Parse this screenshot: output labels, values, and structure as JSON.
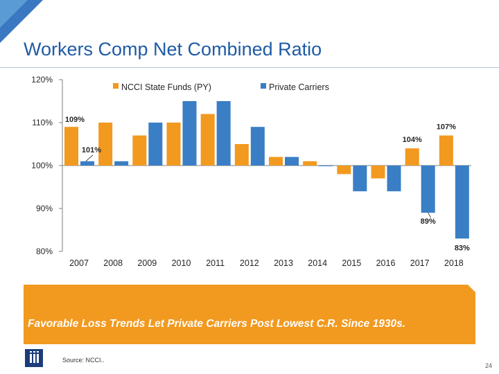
{
  "page": {
    "title": "Workers Comp Net Combined Ratio",
    "banner": "Favorable Loss Trends Let Private Carriers Post Lowest C.R. Since 1930s.",
    "source": "Source: NCCI..",
    "page_number": "24"
  },
  "colors": {
    "ncci": "#f2991f",
    "private": "#3a7ec5",
    "title": "#1f5ba6",
    "banner": "#f2991f"
  },
  "chart_data": {
    "type": "bar",
    "title": "Workers Comp Net Combined Ratio",
    "xlabel": "",
    "ylabel": "",
    "ylim": [
      80,
      120
    ],
    "ytick_labels": [
      "80%",
      "90%",
      "100%",
      "110%",
      "120%"
    ],
    "ytick_values": [
      80,
      90,
      100,
      110,
      120
    ],
    "categories": [
      "2007",
      "2008",
      "2009",
      "2010",
      "2011",
      "2012",
      "2013",
      "2014",
      "2015",
      "2016",
      "2017",
      "2018"
    ],
    "series": [
      {
        "name": "NCCI State Funds (PY)",
        "values": [
          109,
          110,
          107,
          110,
          112,
          105,
          102,
          101,
          98,
          97,
          104,
          107
        ]
      },
      {
        "name": "Private Carriers",
        "values": [
          101,
          101,
          110,
          115,
          115,
          109,
          102,
          100,
          94,
          94,
          89,
          83
        ]
      }
    ],
    "data_labels": [
      {
        "series": 0,
        "index": 0,
        "text": "109%"
      },
      {
        "series": 1,
        "index": 0,
        "text": "101%"
      },
      {
        "series": 0,
        "index": 10,
        "text": "104%"
      },
      {
        "series": 1,
        "index": 10,
        "text": "89%"
      },
      {
        "series": 0,
        "index": 11,
        "text": "107%"
      },
      {
        "series": 1,
        "index": 11,
        "text": "83%"
      }
    ],
    "legend_position": "top"
  }
}
